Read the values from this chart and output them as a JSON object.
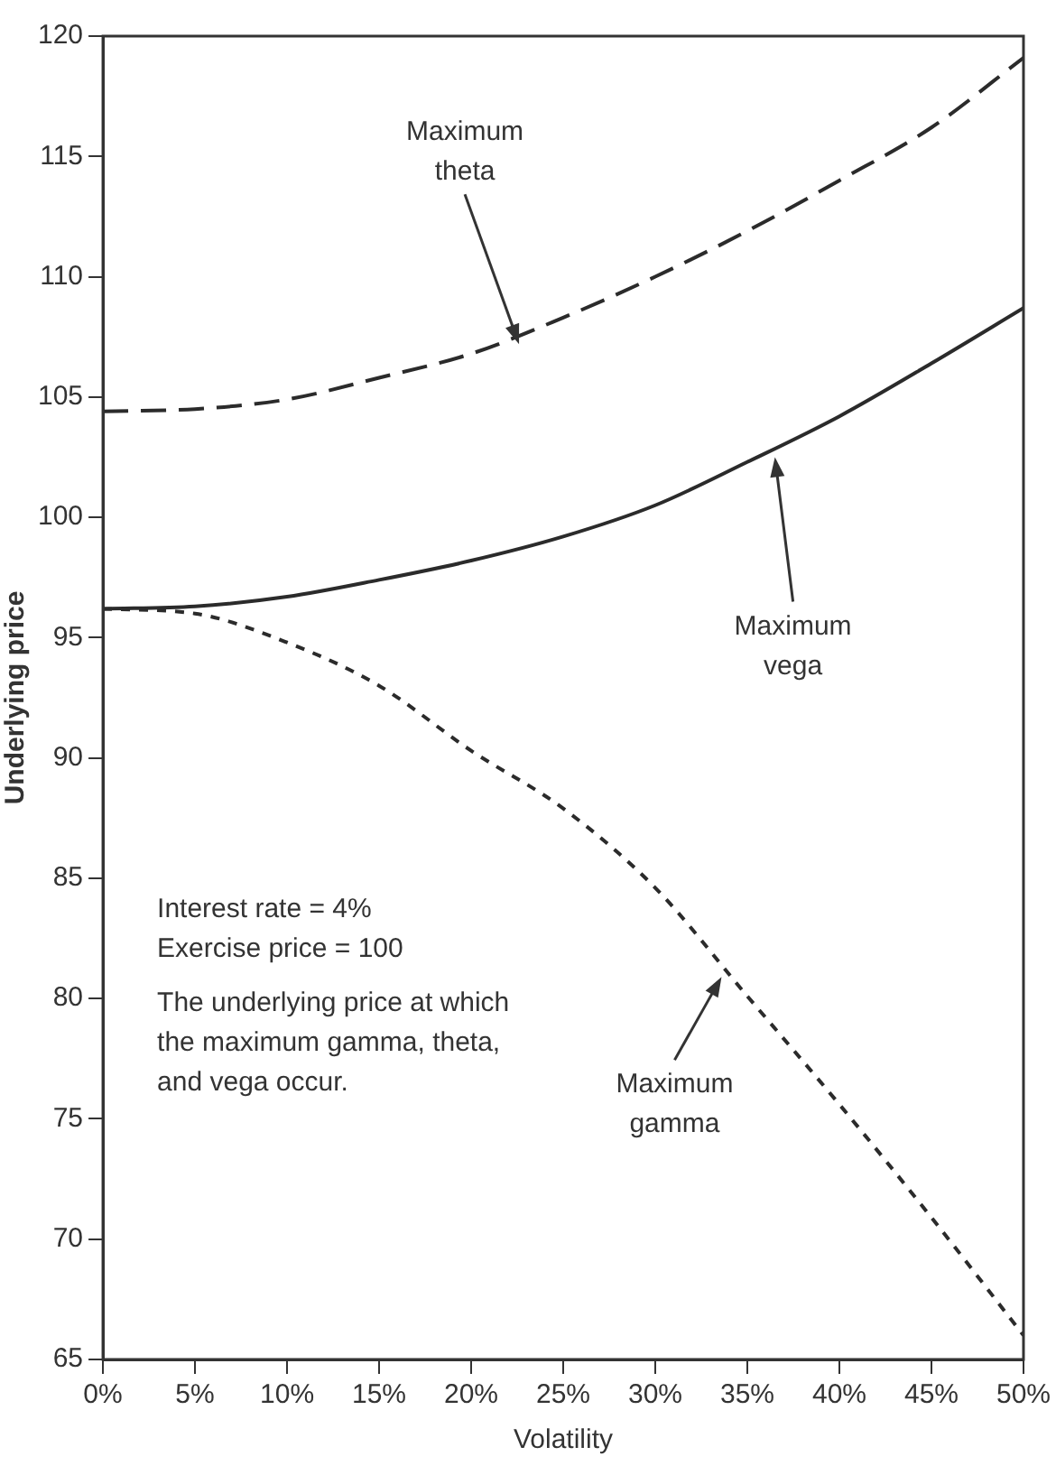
{
  "chart_data": {
    "type": "line",
    "xlabel": "Volatility",
    "ylabel": "Underlying price",
    "x": [
      0,
      5,
      10,
      15,
      20,
      25,
      30,
      35,
      40,
      45,
      50
    ],
    "series": [
      {
        "color": "#2b2b2b",
        "line_style": "dashed",
        "values": [
          104.4,
          104.5,
          104.9,
          105.8,
          106.8,
          108.3,
          110.0,
          111.9,
          114.0,
          116.2,
          119.1
        ]
      },
      {
        "color": "#2b2b2b",
        "line_style": "solid",
        "values": [
          96.2,
          96.3,
          96.7,
          97.4,
          98.2,
          99.2,
          100.5,
          102.3,
          104.2,
          106.4,
          108.7
        ]
      },
      {
        "color": "#2b2b2b",
        "line_style": "dotted",
        "values": [
          96.2,
          96.0,
          94.8,
          93.0,
          90.3,
          87.9,
          84.6,
          80.1,
          75.6,
          70.9,
          66.0
        ]
      }
    ],
    "xlim": [
      0,
      50
    ],
    "ylim": [
      65,
      120
    ],
    "xticks": [
      {
        "value": 0,
        "label": "0%"
      },
      {
        "value": 5,
        "label": "5%"
      },
      {
        "value": 10,
        "label": "10%"
      },
      {
        "value": 15,
        "label": "15%"
      },
      {
        "value": 20,
        "label": "20%"
      },
      {
        "value": 25,
        "label": "25%"
      },
      {
        "value": 30,
        "label": "30%"
      },
      {
        "value": 35,
        "label": "35%"
      },
      {
        "value": 40,
        "label": "40%"
      },
      {
        "value": 45,
        "label": "45%"
      },
      {
        "value": 50,
        "label": "50%"
      }
    ],
    "yticks": [
      65,
      70,
      75,
      80,
      85,
      90,
      95,
      100,
      105,
      110,
      115,
      120
    ],
    "grid": false,
    "legend": false,
    "marker": "none",
    "annotations": [
      {
        "text": "Maximum theta",
        "x": 22.6,
        "y": 107.2
      },
      {
        "text": "Maximum vega",
        "x": 36.5,
        "y": 102.5
      },
      {
        "text": "Maximum gamma",
        "x": 33.6,
        "y": 80.9
      },
      "Interest rate = 4%",
      "Exercise price = 100",
      "The underlying price at which the maximum gamma, theta, and vega occur."
    ]
  }
}
